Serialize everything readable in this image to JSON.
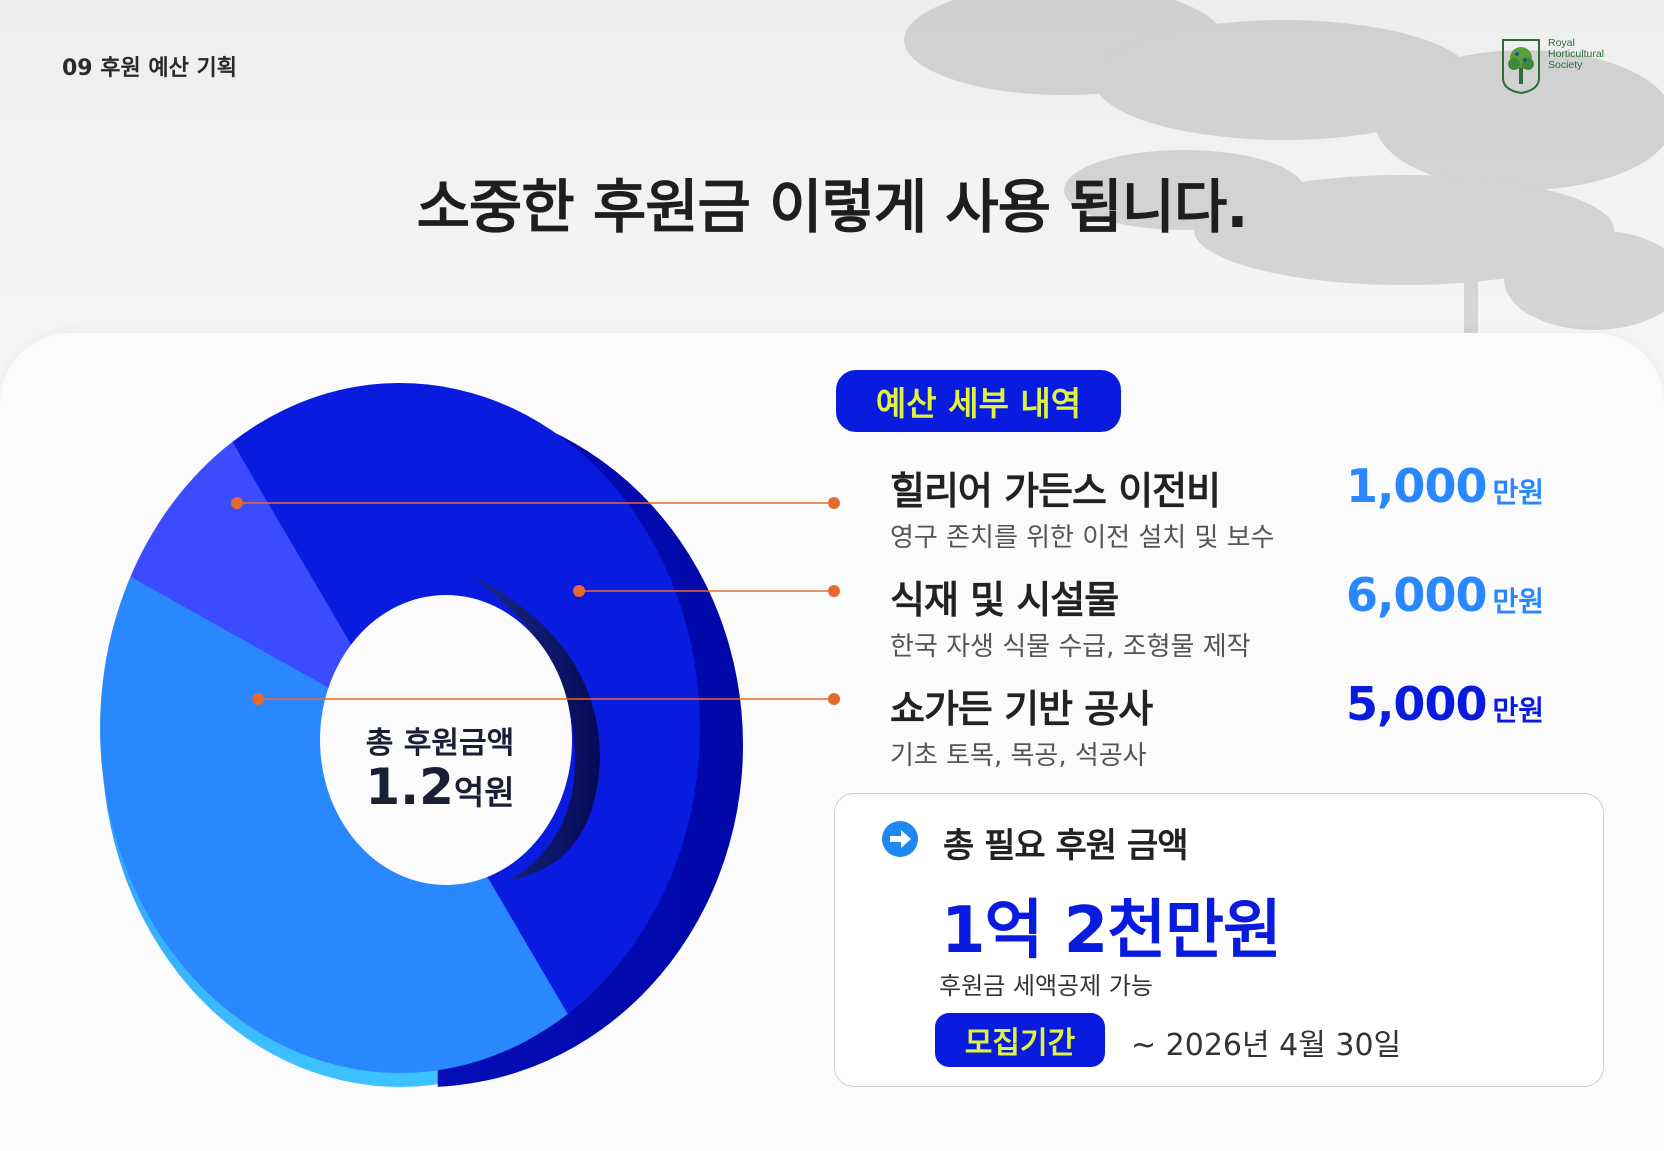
{
  "header": {
    "section": "09 후원 예산 기획",
    "logo_text": "Royal Horticultural Society",
    "headline": "소중한 후원금 이렇게 사용 됩니다."
  },
  "colors": {
    "pill_bg": "#0a1be0",
    "pill_text": "#e0f43b",
    "leader": "#e66a2e"
  },
  "donut": {
    "center_label": "총 후원금액",
    "center_value": "1.2",
    "center_unit": "억원"
  },
  "budget": {
    "pill": "예산 세부 내역",
    "items": [
      {
        "title": "힐리어 가든스 이전비",
        "desc": "영구 존치를 위한 이전 설치 및 보수",
        "amount": "1,000",
        "unit": "만원"
      },
      {
        "title": "식재 및 시설물",
        "desc": "한국 자생 식물 수급, 조형물 제작",
        "amount": "6,000",
        "unit": "만원"
      },
      {
        "title": "쇼가든 기반 공사",
        "desc": "기초 토목, 목공, 석공사",
        "amount": "5,000",
        "unit": "만원"
      }
    ]
  },
  "summary": {
    "icon": "arrow-right-circle-icon",
    "title": "총 필요 후원 금액",
    "value": "1억 2천만원",
    "note": "후원금 세액공제 가능",
    "period_label": "모집기간",
    "period_value": "~ 2026년 4월 30일"
  },
  "chart_data": {
    "type": "pie",
    "style": "3d-donut",
    "categories": [
      "힐리어 가든스 이전비",
      "식재 및 시설물",
      "쇼가든 기반 공사"
    ],
    "values": [
      1000,
      6000,
      5000
    ],
    "unit": "만원",
    "total": "1.2억원",
    "colors": [
      "#3d4bff",
      "#0a1be0",
      "#2a88ff"
    ]
  }
}
